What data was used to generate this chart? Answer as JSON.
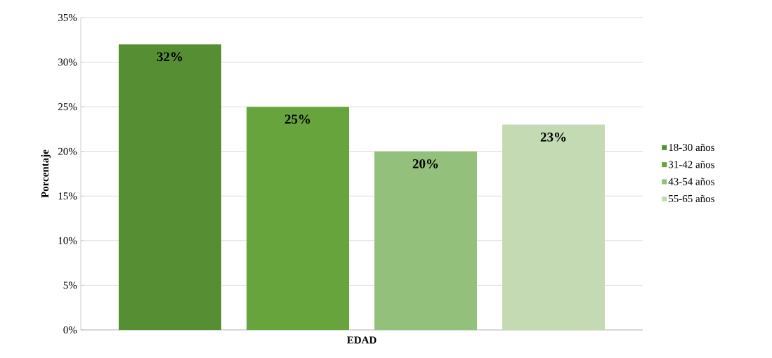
{
  "chart_data": {
    "type": "bar",
    "xlabel": "EDAD",
    "ylabel": "Porcentaje",
    "categories": [
      null
    ],
    "series": [
      {
        "name": "18-30 años",
        "color": "#558e33",
        "values": [
          32
        ],
        "value_labels": [
          "32%"
        ]
      },
      {
        "name": "31-42 años",
        "color": "#67a43b",
        "values": [
          25
        ],
        "value_labels": [
          "25%"
        ]
      },
      {
        "name": "43-54 años",
        "color": "#93c07a",
        "values": [
          20
        ],
        "value_labels": [
          "20%"
        ]
      },
      {
        "name": "55-65 años",
        "color": "#c3dab2",
        "values": [
          23
        ],
        "value_labels": [
          "23%"
        ]
      }
    ],
    "ylim": [
      0,
      35
    ],
    "yticks": [
      {
        "value": 0,
        "label": "0%"
      },
      {
        "value": 5,
        "label": "5%"
      },
      {
        "value": 10,
        "label": "10%"
      },
      {
        "value": 15,
        "label": "15%"
      },
      {
        "value": 20,
        "label": "20%"
      },
      {
        "value": 25,
        "label": "25%"
      },
      {
        "value": 30,
        "label": "30%"
      },
      {
        "value": 35,
        "label": "35%"
      }
    ],
    "grid": "y",
    "legend": "right"
  }
}
